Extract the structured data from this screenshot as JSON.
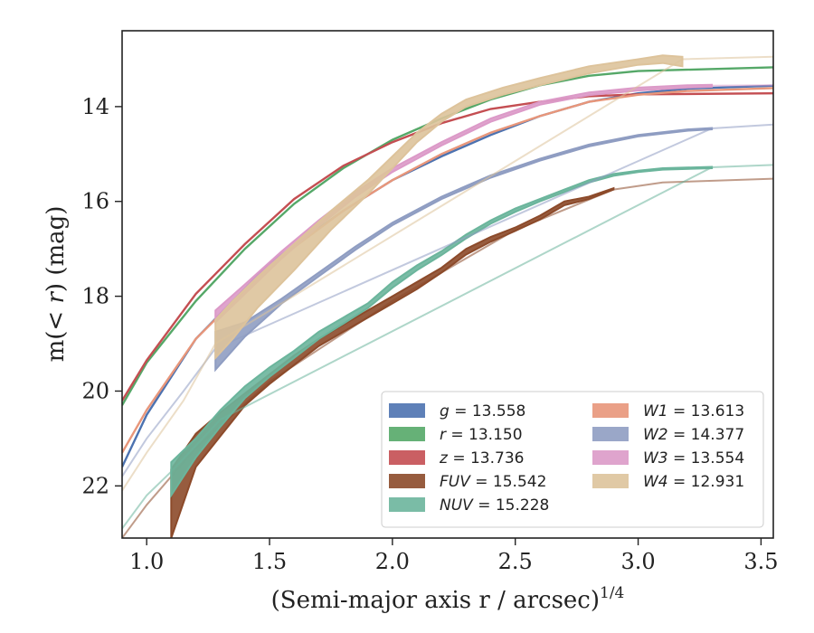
{
  "chart_data": {
    "type": "line",
    "xlabel": "(Semi-major axis r / arcsec)",
    "xlabel_power": "1/4",
    "ylabel_prefix": "m(",
    "ylabel_math": "< r",
    "ylabel_suffix": ") (mag)",
    "xlim": [
      0.9,
      3.55
    ],
    "ylim": [
      23.1,
      12.4
    ],
    "y_inverted": true,
    "xticks": [
      1.0,
      1.5,
      2.0,
      2.5,
      3.0,
      3.5
    ],
    "xtick_labels": [
      "1.0",
      "1.5",
      "2.0",
      "2.5",
      "3.0",
      "3.5"
    ],
    "yticks": [
      14,
      16,
      18,
      20,
      22
    ],
    "ytick_labels": [
      "14",
      "16",
      "18",
      "20",
      "22"
    ],
    "grid": false,
    "legend_position": "bottom-right",
    "series": [
      {
        "name": "g",
        "legend_value": "= 13.558",
        "color": "#4c72b0",
        "solid": [
          [
            0.9,
            21.6
          ],
          [
            1.0,
            20.5
          ],
          [
            1.2,
            18.9
          ],
          [
            1.5,
            17.3
          ],
          [
            1.8,
            16.2
          ],
          [
            2.0,
            15.55
          ],
          [
            2.2,
            15.05
          ],
          [
            2.4,
            14.6
          ],
          [
            2.6,
            14.2
          ],
          [
            2.8,
            13.9
          ],
          [
            3.0,
            13.72
          ],
          [
            3.2,
            13.62
          ],
          [
            3.55,
            13.56
          ]
        ],
        "faint": [],
        "width_top": [],
        "width_bot": []
      },
      {
        "name": "r",
        "legend_value": "= 13.150",
        "color": "#55a868",
        "solid": [
          [
            0.9,
            20.3
          ],
          [
            1.0,
            19.4
          ],
          [
            1.2,
            18.1
          ],
          [
            1.4,
            17.0
          ],
          [
            1.6,
            16.05
          ],
          [
            1.8,
            15.3
          ],
          [
            2.0,
            14.7
          ],
          [
            2.2,
            14.25
          ],
          [
            2.4,
            13.85
          ],
          [
            2.6,
            13.55
          ],
          [
            2.8,
            13.35
          ],
          [
            3.0,
            13.25
          ],
          [
            3.55,
            13.17
          ]
        ],
        "faint": [],
        "width_top": [],
        "width_bot": []
      },
      {
        "name": "z",
        "legend_value": "= 13.736",
        "color": "#c44e52",
        "solid": [
          [
            0.9,
            20.2
          ],
          [
            1.0,
            19.35
          ],
          [
            1.2,
            17.95
          ],
          [
            1.4,
            16.9
          ],
          [
            1.6,
            15.95
          ],
          [
            1.8,
            15.25
          ],
          [
            2.0,
            14.75
          ],
          [
            2.2,
            14.35
          ],
          [
            2.4,
            14.05
          ],
          [
            2.6,
            13.9
          ],
          [
            2.8,
            13.78
          ],
          [
            3.0,
            13.74
          ],
          [
            3.55,
            13.72
          ]
        ],
        "faint": [],
        "width_top": [],
        "width_bot": []
      },
      {
        "name": "FUV",
        "legend_value": "= 15.542",
        "color": "#8c4a2a",
        "band_top": [
          [
            1.1,
            21.65
          ],
          [
            1.2,
            20.9
          ],
          [
            1.3,
            20.45
          ],
          [
            1.4,
            20.05
          ],
          [
            1.5,
            19.65
          ],
          [
            1.6,
            19.25
          ],
          [
            1.7,
            18.9
          ],
          [
            1.8,
            18.6
          ],
          [
            1.9,
            18.3
          ],
          [
            2.0,
            18.0
          ],
          [
            2.1,
            17.7
          ],
          [
            2.2,
            17.4
          ],
          [
            2.3,
            17.0
          ],
          [
            2.4,
            16.75
          ],
          [
            2.5,
            16.55
          ],
          [
            2.6,
            16.3
          ],
          [
            2.7,
            16.0
          ],
          [
            2.8,
            15.9
          ],
          [
            2.9,
            15.72
          ]
        ],
        "band_bot": [
          [
            1.1,
            23.1
          ],
          [
            1.2,
            21.6
          ],
          [
            1.3,
            20.95
          ],
          [
            1.4,
            20.3
          ],
          [
            1.5,
            19.85
          ],
          [
            1.6,
            19.45
          ],
          [
            1.7,
            19.05
          ],
          [
            1.8,
            18.75
          ],
          [
            1.9,
            18.45
          ],
          [
            2.0,
            18.15
          ],
          [
            2.1,
            17.85
          ],
          [
            2.2,
            17.5
          ],
          [
            2.3,
            17.12
          ],
          [
            2.4,
            16.85
          ],
          [
            2.5,
            16.62
          ],
          [
            2.6,
            16.38
          ],
          [
            2.7,
            16.08
          ],
          [
            2.8,
            15.95
          ],
          [
            2.9,
            15.75
          ]
        ],
        "faint": [
          [
            0.9,
            23.1
          ],
          [
            1.0,
            22.4
          ],
          [
            1.2,
            21.2
          ],
          [
            1.5,
            19.8
          ],
          [
            2.0,
            18.1
          ],
          [
            2.5,
            16.6
          ],
          [
            2.9,
            15.75
          ],
          [
            3.1,
            15.6
          ],
          [
            3.55,
            15.52
          ]
        ]
      },
      {
        "name": "NUV",
        "legend_value": "= 15.228",
        "color": "#6bb59c",
        "band_top": [
          [
            1.1,
            21.5
          ],
          [
            1.2,
            21.0
          ],
          [
            1.3,
            20.4
          ],
          [
            1.4,
            19.9
          ],
          [
            1.5,
            19.5
          ],
          [
            1.6,
            19.15
          ],
          [
            1.7,
            18.75
          ],
          [
            1.8,
            18.45
          ],
          [
            1.9,
            18.15
          ],
          [
            2.0,
            17.7
          ],
          [
            2.1,
            17.35
          ],
          [
            2.2,
            17.05
          ],
          [
            2.3,
            16.7
          ],
          [
            2.4,
            16.4
          ],
          [
            2.5,
            16.15
          ],
          [
            2.6,
            15.95
          ],
          [
            2.7,
            15.75
          ],
          [
            2.8,
            15.55
          ],
          [
            2.9,
            15.42
          ],
          [
            3.0,
            15.35
          ],
          [
            3.1,
            15.3
          ],
          [
            3.3,
            15.27
          ]
        ],
        "band_bot": [
          [
            1.1,
            22.2
          ],
          [
            1.2,
            21.4
          ],
          [
            1.3,
            20.75
          ],
          [
            1.4,
            20.15
          ],
          [
            1.5,
            19.7
          ],
          [
            1.6,
            19.3
          ],
          [
            1.7,
            18.9
          ],
          [
            1.8,
            18.58
          ],
          [
            1.9,
            18.25
          ],
          [
            2.0,
            17.82
          ],
          [
            2.1,
            17.45
          ],
          [
            2.2,
            17.13
          ],
          [
            2.3,
            16.78
          ],
          [
            2.4,
            16.47
          ],
          [
            2.5,
            16.22
          ],
          [
            2.6,
            16.0
          ],
          [
            2.7,
            15.8
          ],
          [
            2.8,
            15.6
          ],
          [
            2.9,
            15.46
          ],
          [
            3.0,
            15.38
          ],
          [
            3.1,
            15.33
          ],
          [
            3.3,
            15.3
          ]
        ],
        "faint": [
          [
            0.9,
            22.9
          ],
          [
            1.0,
            22.2
          ],
          [
            1.1,
            21.7
          ],
          [
            1.3,
            20.6
          ],
          [
            3.3,
            15.28
          ],
          [
            3.55,
            15.23
          ]
        ]
      },
      {
        "name": "W1",
        "legend_value": "= 13.613",
        "color": "#e8967a",
        "solid": [
          [
            0.9,
            21.3
          ],
          [
            1.0,
            20.4
          ],
          [
            1.2,
            18.9
          ],
          [
            1.5,
            17.35
          ],
          [
            1.8,
            16.2
          ],
          [
            2.0,
            15.55
          ],
          [
            2.2,
            15.0
          ],
          [
            2.4,
            14.55
          ],
          [
            2.6,
            14.2
          ],
          [
            2.8,
            13.9
          ],
          [
            3.0,
            13.75
          ],
          [
            3.2,
            13.67
          ],
          [
            3.55,
            13.61
          ]
        ],
        "faint": [],
        "width_top": [],
        "width_bot": []
      },
      {
        "name": "W2",
        "legend_value": "= 14.377",
        "color": "#8f9dc2",
        "band_top": [
          [
            1.28,
            18.75
          ],
          [
            1.4,
            18.55
          ],
          [
            1.55,
            18.05
          ],
          [
            1.7,
            17.5
          ],
          [
            1.85,
            16.95
          ],
          [
            2.0,
            16.45
          ],
          [
            2.2,
            15.9
          ],
          [
            2.4,
            15.45
          ],
          [
            2.6,
            15.1
          ],
          [
            2.8,
            14.8
          ],
          [
            3.0,
            14.6
          ],
          [
            3.2,
            14.48
          ],
          [
            3.3,
            14.45
          ]
        ],
        "band_bot": [
          [
            1.28,
            19.55
          ],
          [
            1.4,
            18.85
          ],
          [
            1.55,
            18.15
          ],
          [
            1.7,
            17.58
          ],
          [
            1.85,
            17.02
          ],
          [
            2.0,
            16.5
          ],
          [
            2.2,
            15.95
          ],
          [
            2.4,
            15.5
          ],
          [
            2.6,
            15.14
          ],
          [
            2.8,
            14.84
          ],
          [
            3.0,
            14.63
          ],
          [
            3.2,
            14.51
          ],
          [
            3.3,
            14.48
          ]
        ],
        "faint": [
          [
            0.9,
            21.8
          ],
          [
            1.0,
            21.0
          ],
          [
            1.15,
            20.0
          ],
          [
            1.28,
            19.1
          ],
          [
            3.3,
            14.46
          ],
          [
            3.55,
            14.38
          ]
        ]
      },
      {
        "name": "W3",
        "legend_value": "= 13.554",
        "color": "#dc9ac8",
        "band_top": [
          [
            1.28,
            18.3
          ],
          [
            1.4,
            17.75
          ],
          [
            1.55,
            17.05
          ],
          [
            1.7,
            16.4
          ],
          [
            1.85,
            15.8
          ],
          [
            2.0,
            15.3
          ],
          [
            2.2,
            14.75
          ],
          [
            2.4,
            14.25
          ],
          [
            2.6,
            13.9
          ],
          [
            2.8,
            13.7
          ],
          [
            3.0,
            13.6
          ],
          [
            3.2,
            13.55
          ],
          [
            3.3,
            13.54
          ]
        ],
        "band_bot": [
          [
            1.28,
            18.55
          ],
          [
            1.4,
            17.95
          ],
          [
            1.55,
            17.2
          ],
          [
            1.7,
            16.52
          ],
          [
            1.85,
            15.9
          ],
          [
            2.0,
            15.38
          ],
          [
            2.2,
            14.82
          ],
          [
            2.4,
            14.32
          ],
          [
            2.6,
            13.96
          ],
          [
            2.8,
            13.76
          ],
          [
            3.0,
            13.66
          ],
          [
            3.2,
            13.6
          ],
          [
            3.3,
            13.58
          ]
        ],
        "faint": [
          [
            3.3,
            13.56
          ],
          [
            3.55,
            13.55
          ]
        ]
      },
      {
        "name": "W4",
        "legend_value": "= 12.931",
        "color": "#ddc39b",
        "band_top": [
          [
            1.28,
            18.5
          ],
          [
            1.35,
            18.1
          ],
          [
            1.45,
            17.6
          ],
          [
            1.6,
            16.9
          ],
          [
            1.75,
            16.2
          ],
          [
            1.9,
            15.55
          ],
          [
            2.0,
            15.05
          ],
          [
            2.1,
            14.55
          ],
          [
            2.2,
            14.15
          ],
          [
            2.3,
            13.85
          ],
          [
            2.45,
            13.6
          ],
          [
            2.6,
            13.4
          ],
          [
            2.8,
            13.15
          ],
          [
            3.0,
            13.0
          ],
          [
            3.1,
            12.92
          ],
          [
            3.18,
            12.95
          ]
        ],
        "band_bot": [
          [
            1.28,
            19.3
          ],
          [
            1.35,
            18.9
          ],
          [
            1.45,
            18.25
          ],
          [
            1.6,
            17.45
          ],
          [
            1.75,
            16.6
          ],
          [
            1.9,
            15.85
          ],
          [
            2.0,
            15.3
          ],
          [
            2.1,
            14.75
          ],
          [
            2.2,
            14.32
          ],
          [
            2.3,
            14.0
          ],
          [
            2.45,
            13.75
          ],
          [
            2.6,
            13.55
          ],
          [
            2.8,
            13.3
          ],
          [
            3.0,
            13.12
          ],
          [
            3.1,
            13.08
          ],
          [
            3.18,
            13.15
          ]
        ],
        "faint": [
          [
            0.9,
            22.1
          ],
          [
            1.0,
            21.3
          ],
          [
            1.15,
            20.2
          ],
          [
            1.28,
            19.0
          ],
          [
            3.18,
            13.0
          ],
          [
            3.55,
            12.95
          ]
        ]
      }
    ]
  }
}
